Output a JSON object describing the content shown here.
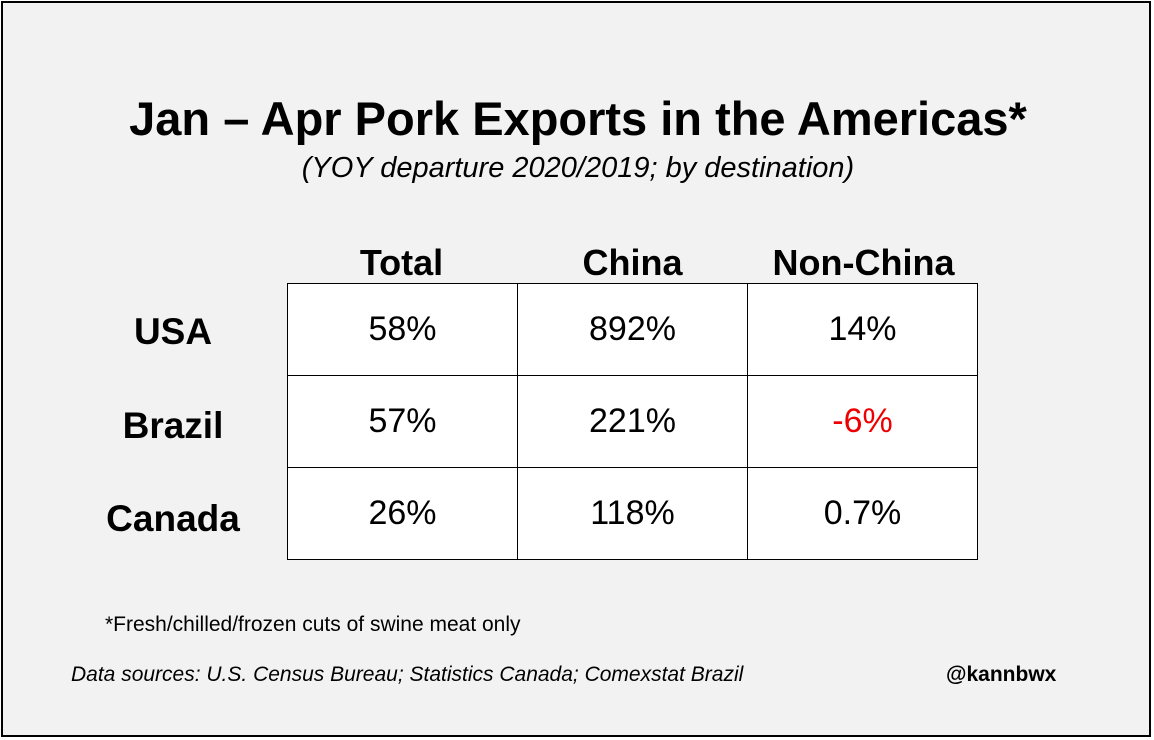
{
  "chart_data": {
    "type": "table",
    "title": "Jan – Apr Pork Exports in the Americas*",
    "subtitle": "(YOY departure 2020/2019; by destination)",
    "columns": [
      "Total",
      "China",
      "Non-China"
    ],
    "rows": [
      {
        "name": "USA",
        "cells": [
          "58%",
          "892%",
          "14%"
        ],
        "values": [
          58,
          892,
          14
        ]
      },
      {
        "name": "Brazil",
        "cells": [
          "57%",
          "221%",
          "-6%"
        ],
        "values": [
          57,
          221,
          -6
        ]
      },
      {
        "name": "Canada",
        "cells": [
          "26%",
          "118%",
          "0.7%"
        ],
        "values": [
          26,
          118,
          0.7
        ]
      }
    ],
    "unit": "%",
    "negative_color": "#ee0000"
  },
  "footnote": "*Fresh/chilled/frozen cuts of swine meat only",
  "sources": "Data sources: U.S. Census Bureau; Statistics Canada; Comexstat Brazil",
  "handle": "@kannbwx",
  "colors": {
    "background": "#f2f2f2",
    "cell_background": "#ffffff",
    "text": "#000000",
    "negative": "#ee0000"
  }
}
